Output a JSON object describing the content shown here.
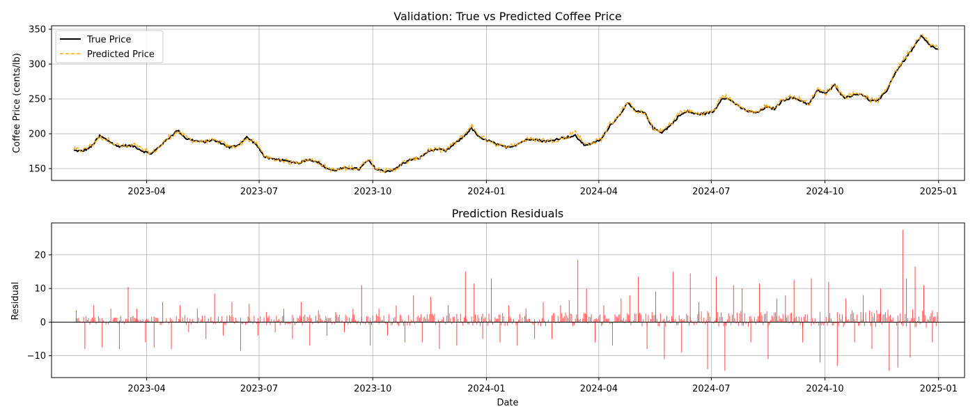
{
  "chart_data": [
    {
      "type": "line",
      "title": "Validation: True vs Predicted Coffee Price",
      "xlabel": "",
      "ylabel": "Coffee Price (cents/lb)",
      "xlim": [
        "2023-01-14",
        "2025-01-22"
      ],
      "ylim": [
        133,
        355
      ],
      "yticks": [
        150,
        200,
        250,
        300,
        350
      ],
      "xticks": [
        "2023-04",
        "2023-07",
        "2023-10",
        "2024-01",
        "2024-04",
        "2024-07",
        "2024-10",
        "2025-01"
      ],
      "grid": true,
      "legend_position": "top-left",
      "series": [
        {
          "name": "True Price",
          "color": "#000000",
          "style": "solid"
        },
        {
          "name": "Predicted Price",
          "color": "#ffa500",
          "style": "dashed"
        }
      ],
      "true_price": [
        [
          "2023-02-01",
          176
        ],
        [
          "2023-02-08",
          175
        ],
        [
          "2023-02-15",
          181
        ],
        [
          "2023-02-22",
          197
        ],
        [
          "2023-03-01",
          190
        ],
        [
          "2023-03-08",
          182
        ],
        [
          "2023-03-15",
          183
        ],
        [
          "2023-03-22",
          182
        ],
        [
          "2023-03-29",
          175
        ],
        [
          "2023-04-05",
          171
        ],
        [
          "2023-04-12",
          183
        ],
        [
          "2023-04-19",
          194
        ],
        [
          "2023-04-26",
          205
        ],
        [
          "2023-05-03",
          193
        ],
        [
          "2023-05-10",
          190
        ],
        [
          "2023-05-17",
          188
        ],
        [
          "2023-05-24",
          191
        ],
        [
          "2023-05-31",
          187
        ],
        [
          "2023-06-07",
          180
        ],
        [
          "2023-06-14",
          184
        ],
        [
          "2023-06-21",
          195
        ],
        [
          "2023-06-28",
          186
        ],
        [
          "2023-07-05",
          168
        ],
        [
          "2023-07-12",
          163
        ],
        [
          "2023-07-19",
          162
        ],
        [
          "2023-07-26",
          160
        ],
        [
          "2023-08-02",
          158
        ],
        [
          "2023-08-09",
          163
        ],
        [
          "2023-08-16",
          161
        ],
        [
          "2023-08-23",
          152
        ],
        [
          "2023-08-30",
          147
        ],
        [
          "2023-09-06",
          150
        ],
        [
          "2023-09-13",
          151
        ],
        [
          "2023-09-20",
          149
        ],
        [
          "2023-09-27",
          162
        ],
        [
          "2023-10-04",
          149
        ],
        [
          "2023-10-11",
          146
        ],
        [
          "2023-10-18",
          148
        ],
        [
          "2023-10-25",
          157
        ],
        [
          "2023-11-01",
          163
        ],
        [
          "2023-11-08",
          165
        ],
        [
          "2023-11-15",
          175
        ],
        [
          "2023-11-22",
          178
        ],
        [
          "2023-11-29",
          175
        ],
        [
          "2023-12-06",
          185
        ],
        [
          "2023-12-13",
          195
        ],
        [
          "2023-12-20",
          208
        ],
        [
          "2023-12-27",
          193
        ],
        [
          "2024-01-03",
          190
        ],
        [
          "2024-01-10",
          184
        ],
        [
          "2024-01-17",
          181
        ],
        [
          "2024-01-24",
          183
        ],
        [
          "2024-01-31",
          190
        ],
        [
          "2024-02-07",
          193
        ],
        [
          "2024-02-14",
          190
        ],
        [
          "2024-02-21",
          189
        ],
        [
          "2024-02-28",
          193
        ],
        [
          "2024-03-06",
          195
        ],
        [
          "2024-03-13",
          197
        ],
        [
          "2024-03-20",
          184
        ],
        [
          "2024-03-27",
          186
        ],
        [
          "2024-04-03",
          192
        ],
        [
          "2024-04-10",
          212
        ],
        [
          "2024-04-17",
          225
        ],
        [
          "2024-04-24",
          244
        ],
        [
          "2024-05-01",
          232
        ],
        [
          "2024-05-08",
          230
        ],
        [
          "2024-05-15",
          208
        ],
        [
          "2024-05-22",
          202
        ],
        [
          "2024-05-29",
          212
        ],
        [
          "2024-06-05",
          226
        ],
        [
          "2024-06-12",
          232
        ],
        [
          "2024-06-19",
          228
        ],
        [
          "2024-06-26",
          229
        ],
        [
          "2024-07-03",
          232
        ],
        [
          "2024-07-10",
          252
        ],
        [
          "2024-07-17",
          248
        ],
        [
          "2024-07-24",
          238
        ],
        [
          "2024-07-31",
          232
        ],
        [
          "2024-08-07",
          230
        ],
        [
          "2024-08-14",
          238
        ],
        [
          "2024-08-21",
          236
        ],
        [
          "2024-08-28",
          248
        ],
        [
          "2024-09-04",
          252
        ],
        [
          "2024-09-11",
          248
        ],
        [
          "2024-09-18",
          242
        ],
        [
          "2024-09-25",
          262
        ],
        [
          "2024-10-02",
          258
        ],
        [
          "2024-10-09",
          270
        ],
        [
          "2024-10-16",
          252
        ],
        [
          "2024-10-23",
          255
        ],
        [
          "2024-10-30",
          258
        ],
        [
          "2024-11-06",
          248
        ],
        [
          "2024-11-13",
          247
        ],
        [
          "2024-11-20",
          262
        ],
        [
          "2024-11-27",
          288
        ],
        [
          "2024-12-04",
          305
        ],
        [
          "2024-12-11",
          322
        ],
        [
          "2024-12-18",
          340
        ],
        [
          "2024-12-25",
          327
        ],
        [
          "2025-01-01",
          320
        ]
      ],
      "predicted_price": [
        [
          "2023-02-01",
          178
        ],
        [
          "2023-02-08",
          176
        ],
        [
          "2023-02-15",
          183
        ],
        [
          "2023-02-22",
          195
        ],
        [
          "2023-03-01",
          191
        ],
        [
          "2023-03-08",
          184
        ],
        [
          "2023-03-15",
          181
        ],
        [
          "2023-03-22",
          184
        ],
        [
          "2023-03-29",
          177
        ],
        [
          "2023-04-05",
          172
        ],
        [
          "2023-04-12",
          182
        ],
        [
          "2023-04-19",
          195
        ],
        [
          "2023-04-26",
          203
        ],
        [
          "2023-05-03",
          195
        ],
        [
          "2023-05-10",
          189
        ],
        [
          "2023-05-17",
          189
        ],
        [
          "2023-05-24",
          190
        ],
        [
          "2023-05-31",
          188
        ],
        [
          "2023-06-07",
          181
        ],
        [
          "2023-06-14",
          183
        ],
        [
          "2023-06-21",
          193
        ],
        [
          "2023-06-28",
          187
        ],
        [
          "2023-07-05",
          170
        ],
        [
          "2023-07-12",
          162
        ],
        [
          "2023-07-19",
          163
        ],
        [
          "2023-07-26",
          159
        ],
        [
          "2023-08-02",
          160
        ],
        [
          "2023-08-09",
          162
        ],
        [
          "2023-08-16",
          162
        ],
        [
          "2023-08-23",
          153
        ],
        [
          "2023-08-30",
          148
        ],
        [
          "2023-09-06",
          149
        ],
        [
          "2023-09-13",
          152
        ],
        [
          "2023-09-20",
          150
        ],
        [
          "2023-09-27",
          165
        ],
        [
          "2023-10-04",
          150
        ],
        [
          "2023-10-11",
          147
        ],
        [
          "2023-10-18",
          147
        ],
        [
          "2023-10-25",
          158
        ],
        [
          "2023-11-01",
          162
        ],
        [
          "2023-11-08",
          166
        ],
        [
          "2023-11-15",
          177
        ],
        [
          "2023-11-22",
          177
        ],
        [
          "2023-11-29",
          177
        ],
        [
          "2023-12-06",
          186
        ],
        [
          "2023-12-13",
          197
        ],
        [
          "2023-12-20",
          212
        ],
        [
          "2023-12-27",
          195
        ],
        [
          "2024-01-03",
          191
        ],
        [
          "2024-01-10",
          183
        ],
        [
          "2024-01-17",
          182
        ],
        [
          "2024-01-24",
          184
        ],
        [
          "2024-01-31",
          191
        ],
        [
          "2024-02-07",
          192
        ],
        [
          "2024-02-14",
          191
        ],
        [
          "2024-02-21",
          190
        ],
        [
          "2024-02-28",
          192
        ],
        [
          "2024-03-06",
          194
        ],
        [
          "2024-03-13",
          205
        ],
        [
          "2024-03-20",
          185
        ],
        [
          "2024-03-27",
          187
        ],
        [
          "2024-04-03",
          193
        ],
        [
          "2024-04-10",
          214
        ],
        [
          "2024-04-17",
          226
        ],
        [
          "2024-04-24",
          245
        ],
        [
          "2024-05-01",
          233
        ],
        [
          "2024-05-08",
          229
        ],
        [
          "2024-05-15",
          207
        ],
        [
          "2024-05-22",
          203
        ],
        [
          "2024-05-29",
          214
        ],
        [
          "2024-06-05",
          230
        ],
        [
          "2024-06-12",
          233
        ],
        [
          "2024-06-19",
          229
        ],
        [
          "2024-06-26",
          230
        ],
        [
          "2024-07-03",
          233
        ],
        [
          "2024-07-10",
          255
        ],
        [
          "2024-07-17",
          249
        ],
        [
          "2024-07-24",
          239
        ],
        [
          "2024-07-31",
          233
        ],
        [
          "2024-08-07",
          231
        ],
        [
          "2024-08-14",
          240
        ],
        [
          "2024-08-21",
          237
        ],
        [
          "2024-08-28",
          250
        ],
        [
          "2024-09-04",
          254
        ],
        [
          "2024-09-11",
          250
        ],
        [
          "2024-09-18",
          243
        ],
        [
          "2024-09-25",
          264
        ],
        [
          "2024-10-02",
          259
        ],
        [
          "2024-10-09",
          272
        ],
        [
          "2024-10-16",
          253
        ],
        [
          "2024-10-23",
          257
        ],
        [
          "2024-10-30",
          259
        ],
        [
          "2024-11-06",
          249
        ],
        [
          "2024-11-13",
          248
        ],
        [
          "2024-11-20",
          264
        ],
        [
          "2024-11-27",
          290
        ],
        [
          "2024-12-04",
          307
        ],
        [
          "2024-12-11",
          326
        ],
        [
          "2024-12-18",
          343
        ],
        [
          "2024-12-25",
          329
        ],
        [
          "2025-01-01",
          322
        ]
      ]
    },
    {
      "type": "bar",
      "title": "Prediction Residuals",
      "xlabel": "Date",
      "ylabel": "Residual",
      "xlim": [
        "2023-01-14",
        "2025-01-22"
      ],
      "ylim": [
        -16.5,
        29.5
      ],
      "yticks": [
        -10,
        0,
        10,
        20
      ],
      "xticks": [
        "2023-04",
        "2023-07",
        "2023-10",
        "2024-01",
        "2024-04",
        "2024-07",
        "2024-10",
        "2025-01"
      ],
      "grid": true,
      "zero_line": true,
      "bar_color": "#ff0000",
      "residuals": [
        [
          "2023-02-03",
          3.5
        ],
        [
          "2023-02-10",
          -8
        ],
        [
          "2023-02-17",
          5
        ],
        [
          "2023-02-24",
          -7.5
        ],
        [
          "2023-03-03",
          4
        ],
        [
          "2023-03-10",
          -8
        ],
        [
          "2023-03-17",
          10.5
        ],
        [
          "2023-03-24",
          4
        ],
        [
          "2023-03-31",
          -6
        ],
        [
          "2023-04-07",
          -7.5
        ],
        [
          "2023-04-14",
          6
        ],
        [
          "2023-04-21",
          -8
        ],
        [
          "2023-04-28",
          5
        ],
        [
          "2023-05-05",
          -3
        ],
        [
          "2023-05-12",
          4
        ],
        [
          "2023-05-19",
          -5
        ],
        [
          "2023-05-26",
          8.5
        ],
        [
          "2023-06-02",
          -4
        ],
        [
          "2023-06-09",
          6
        ],
        [
          "2023-06-16",
          -8.5
        ],
        [
          "2023-06-23",
          5.5
        ],
        [
          "2023-06-30",
          -4
        ],
        [
          "2023-07-07",
          3
        ],
        [
          "2023-07-14",
          -3
        ],
        [
          "2023-07-21",
          4
        ],
        [
          "2023-07-28",
          -5
        ],
        [
          "2023-08-04",
          6
        ],
        [
          "2023-08-11",
          -7
        ],
        [
          "2023-08-18",
          3.5
        ],
        [
          "2023-08-25",
          -4
        ],
        [
          "2023-09-01",
          3
        ],
        [
          "2023-09-08",
          -3
        ],
        [
          "2023-09-15",
          4
        ],
        [
          "2023-09-22",
          11
        ],
        [
          "2023-09-29",
          -7
        ],
        [
          "2023-10-06",
          4
        ],
        [
          "2023-10-13",
          -4
        ],
        [
          "2023-10-20",
          5
        ],
        [
          "2023-10-27",
          -6
        ],
        [
          "2023-11-03",
          8
        ],
        [
          "2023-11-10",
          -6
        ],
        [
          "2023-11-17",
          7.5
        ],
        [
          "2023-11-24",
          -8
        ],
        [
          "2023-12-01",
          5
        ],
        [
          "2023-12-08",
          -7
        ],
        [
          "2023-12-15",
          15
        ],
        [
          "2023-12-22",
          11.5
        ],
        [
          "2023-12-29",
          -5
        ],
        [
          "2024-01-05",
          13
        ],
        [
          "2024-01-12",
          -6
        ],
        [
          "2024-01-19",
          5
        ],
        [
          "2024-01-26",
          -7
        ],
        [
          "2024-02-02",
          4
        ],
        [
          "2024-02-09",
          -5
        ],
        [
          "2024-02-16",
          6
        ],
        [
          "2024-02-23",
          -5
        ],
        [
          "2024-03-01",
          5
        ],
        [
          "2024-03-08",
          6.5
        ],
        [
          "2024-03-15",
          18.5
        ],
        [
          "2024-03-22",
          10
        ],
        [
          "2024-03-29",
          -6
        ],
        [
          "2024-04-05",
          5
        ],
        [
          "2024-04-12",
          -7
        ],
        [
          "2024-04-19",
          7
        ],
        [
          "2024-04-26",
          8
        ],
        [
          "2024-05-03",
          13.5
        ],
        [
          "2024-05-10",
          -8
        ],
        [
          "2024-05-17",
          9
        ],
        [
          "2024-05-24",
          -11
        ],
        [
          "2024-05-31",
          15
        ],
        [
          "2024-06-07",
          -9
        ],
        [
          "2024-06-14",
          14.5
        ],
        [
          "2024-06-21",
          6
        ],
        [
          "2024-06-28",
          -14
        ],
        [
          "2024-07-05",
          13.5
        ],
        [
          "2024-07-12",
          -14.5
        ],
        [
          "2024-07-19",
          11
        ],
        [
          "2024-07-26",
          10
        ],
        [
          "2024-08-02",
          -6
        ],
        [
          "2024-08-09",
          11.5
        ],
        [
          "2024-08-16",
          -11
        ],
        [
          "2024-08-23",
          7
        ],
        [
          "2024-08-30",
          8
        ],
        [
          "2024-09-06",
          12.5
        ],
        [
          "2024-09-13",
          -6
        ],
        [
          "2024-09-20",
          13
        ],
        [
          "2024-09-27",
          -12
        ],
        [
          "2024-10-04",
          12
        ],
        [
          "2024-10-11",
          -13
        ],
        [
          "2024-10-18",
          7
        ],
        [
          "2024-10-25",
          -6
        ],
        [
          "2024-11-01",
          8
        ],
        [
          "2024-11-08",
          -8
        ],
        [
          "2024-11-15",
          10
        ],
        [
          "2024-11-22",
          -14.5
        ],
        [
          "2024-11-29",
          -13.5
        ],
        [
          "2024-12-03",
          27.5
        ],
        [
          "2024-12-06",
          13
        ],
        [
          "2024-12-09",
          -10.5
        ],
        [
          "2024-12-13",
          16.5
        ],
        [
          "2024-12-20",
          11
        ],
        [
          "2024-12-27",
          -6
        ],
        [
          "2024-12-31",
          3
        ]
      ]
    }
  ]
}
